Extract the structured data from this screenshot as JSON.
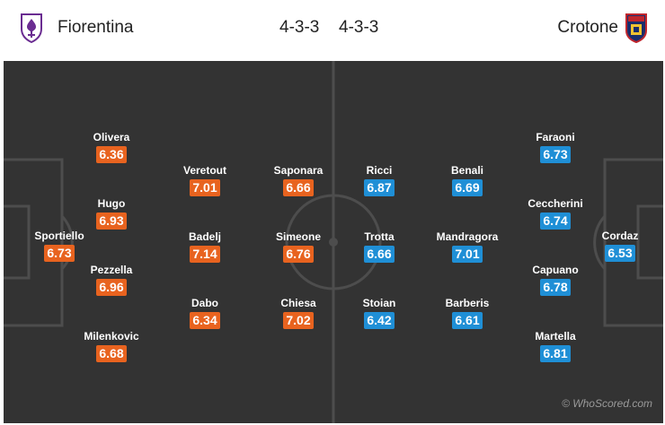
{
  "match": {
    "home": {
      "name": "Fiorentina",
      "formation": "4-3-3"
    },
    "away": {
      "name": "Crotone",
      "formation": "4-3-3"
    }
  },
  "home_players": [
    {
      "name": "Sportiello",
      "rating": "6.73"
    },
    {
      "name": "Olivera",
      "rating": "6.36"
    },
    {
      "name": "Hugo",
      "rating": "6.93"
    },
    {
      "name": "Pezzella",
      "rating": "6.96"
    },
    {
      "name": "Milenkovic",
      "rating": "6.68"
    },
    {
      "name": "Veretout",
      "rating": "7.01"
    },
    {
      "name": "Badelj",
      "rating": "7.14"
    },
    {
      "name": "Dabo",
      "rating": "6.34"
    },
    {
      "name": "Saponara",
      "rating": "6.66"
    },
    {
      "name": "Simeone",
      "rating": "6.76"
    },
    {
      "name": "Chiesa",
      "rating": "7.02"
    }
  ],
  "away_players": [
    {
      "name": "Ricci",
      "rating": "6.87"
    },
    {
      "name": "Trotta",
      "rating": "6.66"
    },
    {
      "name": "Stoian",
      "rating": "6.42"
    },
    {
      "name": "Benali",
      "rating": "6.69"
    },
    {
      "name": "Mandragora",
      "rating": "7.01"
    },
    {
      "name": "Barberis",
      "rating": "6.61"
    },
    {
      "name": "Faraoni",
      "rating": "6.73"
    },
    {
      "name": "Ceccherini",
      "rating": "6.74"
    },
    {
      "name": "Capuano",
      "rating": "6.78"
    },
    {
      "name": "Martella",
      "rating": "6.81"
    },
    {
      "name": "Cordaz",
      "rating": "6.53"
    }
  ],
  "colors": {
    "home_rating": "#e8631f",
    "away_rating": "#1f8fd6",
    "pitch": "#333333"
  },
  "watermark": "© WhoScored.com"
}
